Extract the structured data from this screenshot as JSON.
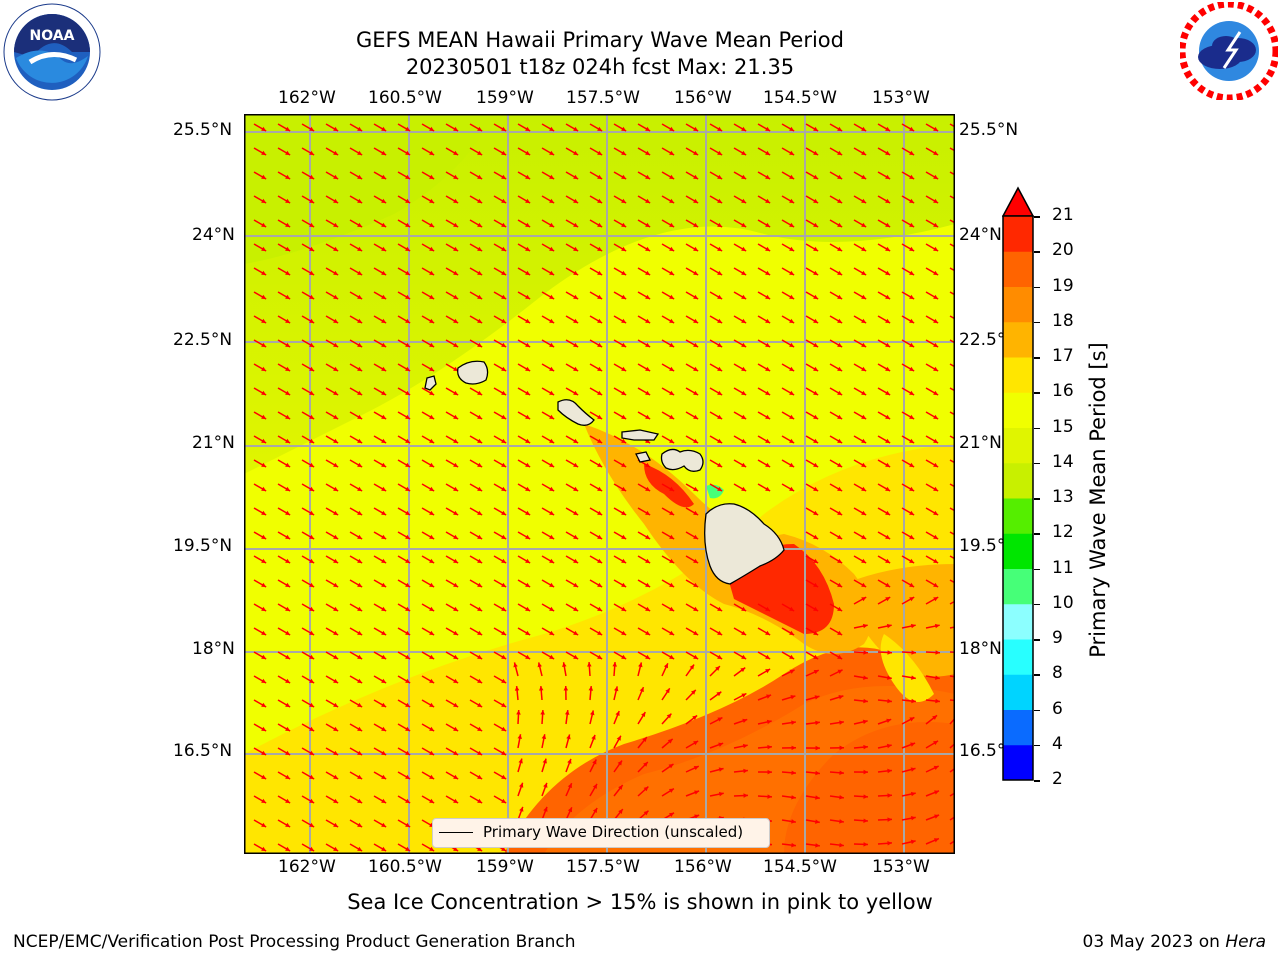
{
  "title": {
    "line1": "GEFS MEAN Hawaii Primary Wave Mean Period",
    "line2": "20230501 t18z 024h fcst   Max: 21.35"
  },
  "logos": {
    "left": {
      "name": "NOAA",
      "ring_text": "NATIONAL OCEANIC AND ATMOSPHERIC ADMINISTRATION · U.S. DEPARTMENT OF COMMERCE"
    },
    "right": {
      "ring_text": "NATIONAL WEATHER SERVICE"
    }
  },
  "map": {
    "lon_labels": [
      "162°W",
      "160.5°W",
      "159°W",
      "157.5°W",
      "156°W",
      "154.5°W",
      "153°W"
    ],
    "lat_labels": [
      "25.5°N",
      "24°N",
      "22.5°N",
      "21°N",
      "19.5°N",
      "18°N",
      "16.5°N"
    ],
    "legend_label": "Primary Wave Direction (unscaled)",
    "arrow_color": "#ff0000",
    "field": {
      "background_period_s": 16,
      "north_period_s": 14,
      "max_period_s": 21.35,
      "swell_region": "south-east, 19-20 s",
      "lee_maximum": "west of Big Island, 20-21 s"
    }
  },
  "colorbar": {
    "label": "Primary Wave Mean Period [s]",
    "ticks": [
      "2",
      "4",
      "6",
      "8",
      "9",
      "10",
      "11",
      "12",
      "13",
      "14",
      "15",
      "16",
      "17",
      "18",
      "19",
      "20",
      "21"
    ],
    "colors": [
      "#0000ff",
      "#0a6bff",
      "#00d4ff",
      "#28ffff",
      "#8cffff",
      "#46ff78",
      "#00e600",
      "#55ee00",
      "#c8f000",
      "#e0f500",
      "#f0ff00",
      "#ffe600",
      "#ffb400",
      "#ff8c00",
      "#ff6400",
      "#ff2800",
      "#ff0000"
    ]
  },
  "sea_ice_note": "Sea Ice Concentration > 15% is shown in pink to yellow",
  "footer": {
    "left": "NCEP/EMC/Verification Post Processing Product Generation Branch",
    "right_prefix": "03 May 2023 on ",
    "right_machine": "Hera"
  }
}
